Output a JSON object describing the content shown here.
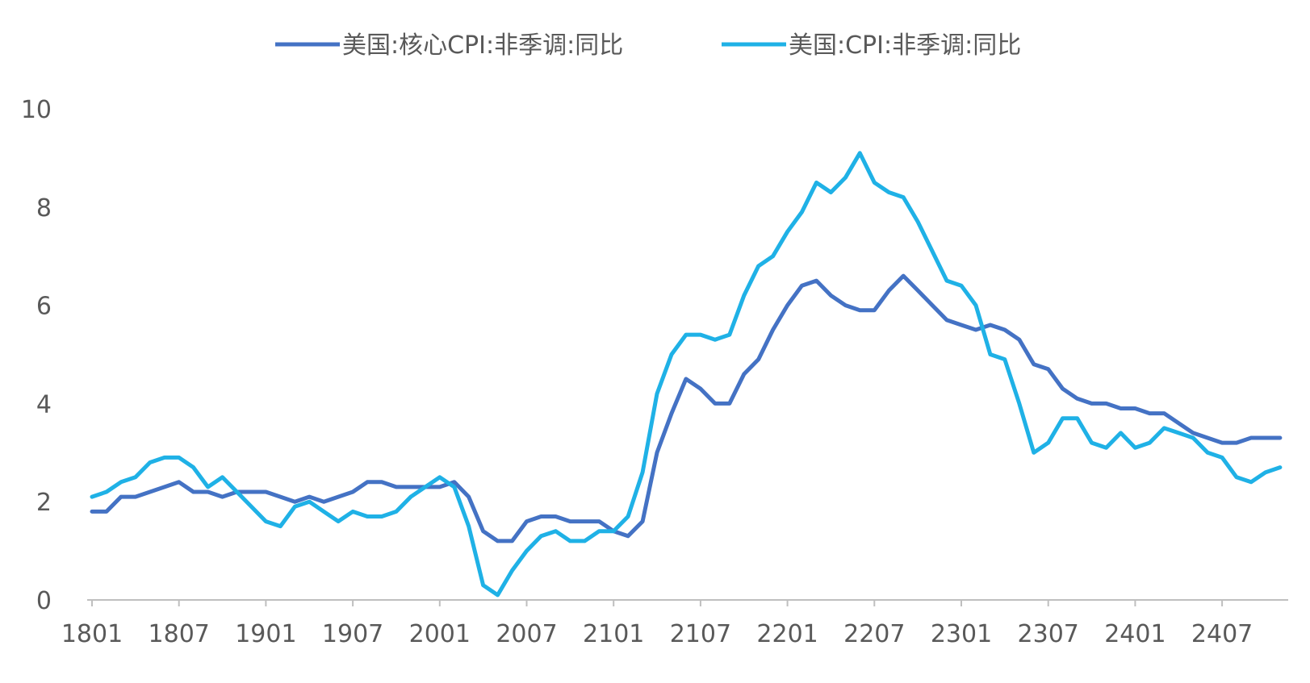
{
  "chart_data": {
    "type": "line",
    "title": "",
    "xlabel": "",
    "ylabel": "",
    "ylim": [
      0,
      10
    ],
    "y_ticks": [
      "0",
      "2",
      "4",
      "6",
      "8",
      "10"
    ],
    "x_tick_labels": [
      "1801",
      "1807",
      "1901",
      "1907",
      "2001",
      "2007",
      "2101",
      "2107",
      "2201",
      "2207",
      "2301",
      "2307",
      "2401",
      "2407"
    ],
    "legend_position": "top",
    "grid": false,
    "series": [
      {
        "name": "美国:核心CPI:非季调:同比",
        "color": "#4472C4",
        "values": [
          1.8,
          1.8,
          2.1,
          2.1,
          2.2,
          2.3,
          2.4,
          2.2,
          2.2,
          2.1,
          2.2,
          2.2,
          2.2,
          2.1,
          2.0,
          2.1,
          2.0,
          2.1,
          2.2,
          2.4,
          2.4,
          2.3,
          2.3,
          2.3,
          2.3,
          2.4,
          2.1,
          1.4,
          1.2,
          1.2,
          1.6,
          1.7,
          1.7,
          1.6,
          1.6,
          1.6,
          1.4,
          1.3,
          1.6,
          3.0,
          3.8,
          4.5,
          4.3,
          4.0,
          4.0,
          4.6,
          4.9,
          5.5,
          6.0,
          6.4,
          6.5,
          6.2,
          6.0,
          5.9,
          5.9,
          6.3,
          6.6,
          6.3,
          6.0,
          5.7,
          5.6,
          5.5,
          5.6,
          5.5,
          5.3,
          4.8,
          4.7,
          4.3,
          4.1,
          4.0,
          4.0,
          3.9,
          3.9,
          3.8,
          3.8,
          3.6,
          3.4,
          3.3,
          3.2,
          3.2,
          3.3,
          3.3,
          3.3
        ]
      },
      {
        "name": "美国:CPI:非季调:同比",
        "color": "#1FB1E6",
        "values": [
          2.1,
          2.2,
          2.4,
          2.5,
          2.8,
          2.9,
          2.9,
          2.7,
          2.3,
          2.5,
          2.2,
          1.9,
          1.6,
          1.5,
          1.9,
          2.0,
          1.8,
          1.6,
          1.8,
          1.7,
          1.7,
          1.8,
          2.1,
          2.3,
          2.5,
          2.3,
          1.5,
          0.3,
          0.1,
          0.6,
          1.0,
          1.3,
          1.4,
          1.2,
          1.2,
          1.4,
          1.4,
          1.7,
          2.6,
          4.2,
          5.0,
          5.4,
          5.4,
          5.3,
          5.4,
          6.2,
          6.8,
          7.0,
          7.5,
          7.9,
          8.5,
          8.3,
          8.6,
          9.1,
          8.5,
          8.3,
          8.2,
          7.7,
          7.1,
          6.5,
          6.4,
          6.0,
          5.0,
          4.9,
          4.0,
          3.0,
          3.2,
          3.7,
          3.7,
          3.2,
          3.1,
          3.4,
          3.1,
          3.2,
          3.5,
          3.4,
          3.3,
          3.0,
          2.9,
          2.5,
          2.4,
          2.6,
          2.7
        ]
      }
    ]
  }
}
